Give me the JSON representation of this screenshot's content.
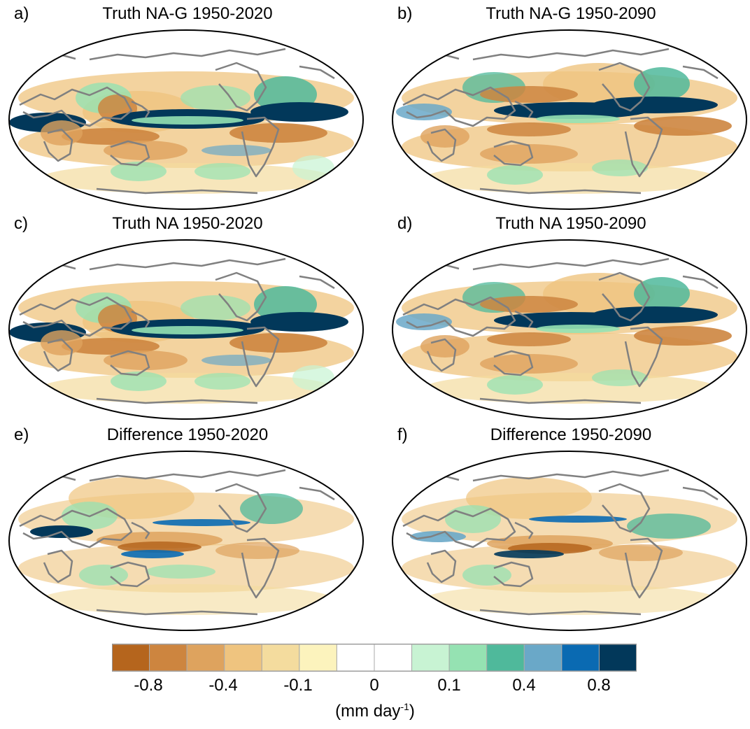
{
  "panels": [
    {
      "label": "a)",
      "title": "Truth NA-G 1950-2020",
      "variant": 0
    },
    {
      "label": "b)",
      "title": "Truth NA-G 1950-2090",
      "variant": 1
    },
    {
      "label": "c)",
      "title": "Truth NA 1950-2020",
      "variant": 0
    },
    {
      "label": "d)",
      "title": "Truth NA 1950-2090",
      "variant": 1
    },
    {
      "label": "e)",
      "title": "Difference 1950-2020",
      "variant": 2
    },
    {
      "label": "f)",
      "title": "Difference 1950-2090",
      "variant": 3
    }
  ],
  "colorbar": {
    "colors": [
      "#b5651d",
      "#cd853f",
      "#dea35e",
      "#efc47f",
      "#f4dc9e",
      "#fcf3bd",
      "#ffffff",
      "#ffffff",
      "#c8f3d3",
      "#95e2b2",
      "#4fb99b",
      "#6aa8c8",
      "#0a6ab2",
      "#02385a"
    ],
    "tick_labels": [
      "-0.8",
      "-0.4",
      "-0.1",
      "0",
      "0.1",
      "0.4",
      "0.8"
    ],
    "units_main": "(mm day",
    "units_sup": "-1",
    "units_end": ")"
  }
}
